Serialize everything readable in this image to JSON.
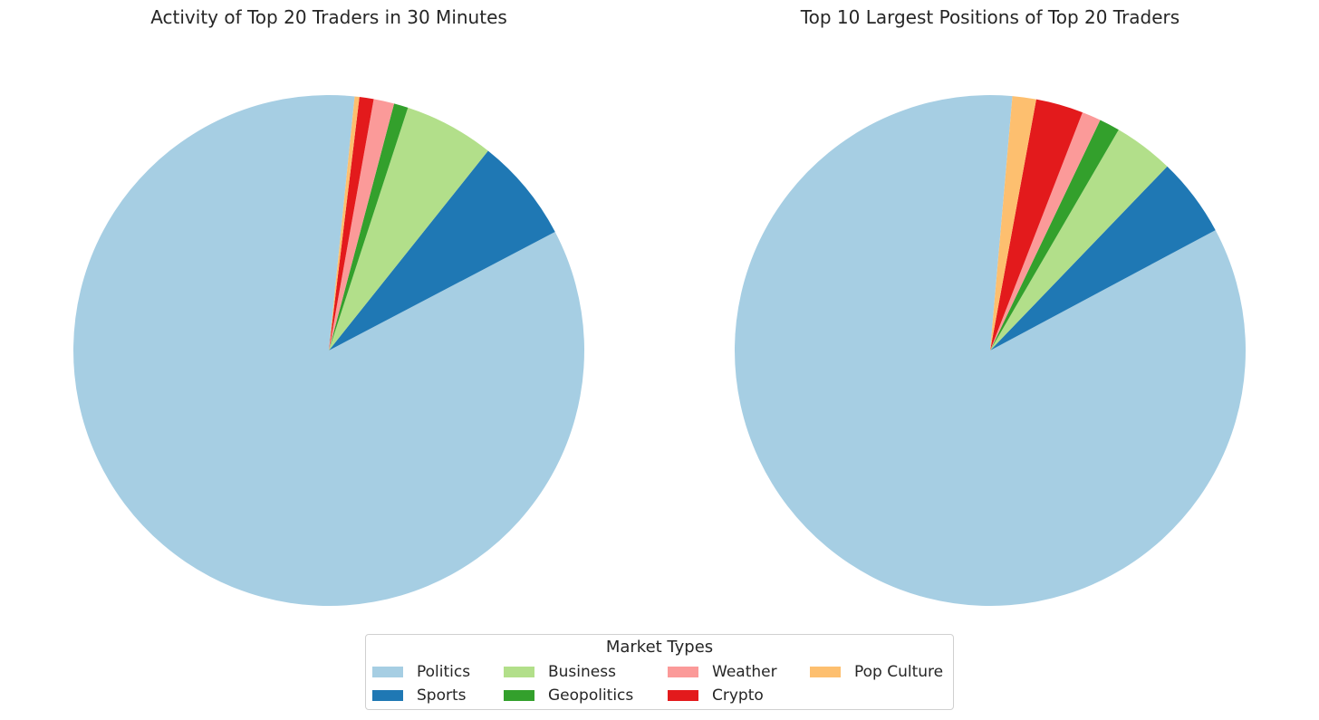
{
  "chart_data": [
    {
      "type": "pie",
      "title": "Activity of Top 20 Traders in 30 Minutes",
      "categories": [
        "Politics",
        "Sports",
        "Business",
        "Geopolitics",
        "Weather",
        "Crypto",
        "Pop Culture"
      ],
      "values": [
        84.3,
        6.6,
        5.7,
        0.9,
        1.3,
        0.9,
        0.3
      ],
      "colors": [
        "#a6cee3",
        "#1f78b4",
        "#b2df8a",
        "#33a02c",
        "#fb9a99",
        "#e31a1c",
        "#fdbf6f"
      ]
    },
    {
      "type": "pie",
      "title": "Top 10 Largest Positions of Top 20 Traders",
      "categories": [
        "Politics",
        "Sports",
        "Business",
        "Geopolitics",
        "Weather",
        "Crypto",
        "Pop Culture"
      ],
      "values": [
        84.2,
        5.0,
        3.8,
        1.3,
        1.2,
        3.0,
        1.5
      ],
      "colors": [
        "#a6cee3",
        "#1f78b4",
        "#b2df8a",
        "#33a02c",
        "#fb9a99",
        "#e31a1c",
        "#fdbf6f"
      ]
    }
  ],
  "legend": {
    "title": "Market Types",
    "placement": "bottom-center",
    "columns": 4,
    "items": [
      {
        "label": "Politics",
        "color": "#a6cee3"
      },
      {
        "label": "Sports",
        "color": "#1f78b4"
      },
      {
        "label": "Business",
        "color": "#b2df8a"
      },
      {
        "label": "Geopolitics",
        "color": "#33a02c"
      },
      {
        "label": "Weather",
        "color": "#fb9a99"
      },
      {
        "label": "Crypto",
        "color": "#e31a1c"
      },
      {
        "label": "Pop Culture",
        "color": "#fdbf6f"
      }
    ]
  }
}
